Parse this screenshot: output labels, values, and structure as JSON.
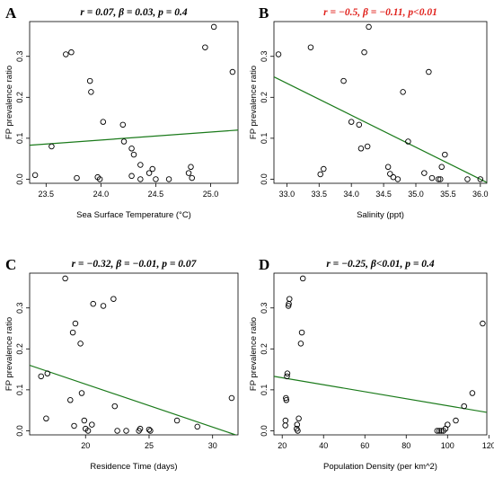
{
  "chart_data": [
    {
      "type": "scatter",
      "panel": "A",
      "title": "r = 0.07, β = 0.03, p = 0.4",
      "title_color": "#000000",
      "xlabel": "Sea Surface Temperature (°C)",
      "ylabel": "FP prevalence ratio",
      "xlim": [
        23.35,
        25.25
      ],
      "ylim": [
        -0.01,
        0.385
      ],
      "xticks": [
        "23.5",
        "24.0",
        "24.5",
        "25.0"
      ],
      "xtick_values": [
        23.5,
        24.0,
        24.5,
        25.0
      ],
      "yticks": [
        "0.0",
        "0.1",
        "0.2",
        "0.3"
      ],
      "ytick_values": [
        0.0,
        0.1,
        0.2,
        0.3
      ],
      "fit_line": {
        "x": [
          23.35,
          25.25
        ],
        "y": [
          0.083,
          0.12
        ],
        "color": "#1a7a1a"
      },
      "points": [
        {
          "x": 23.4,
          "y": 0.01
        },
        {
          "x": 23.55,
          "y": 0.08
        },
        {
          "x": 23.68,
          "y": 0.305
        },
        {
          "x": 23.73,
          "y": 0.31
        },
        {
          "x": 23.78,
          "y": 0.003
        },
        {
          "x": 23.9,
          "y": 0.24
        },
        {
          "x": 23.91,
          "y": 0.213
        },
        {
          "x": 23.97,
          "y": 0.005
        },
        {
          "x": 23.99,
          "y": 0.0
        },
        {
          "x": 24.02,
          "y": 0.14
        },
        {
          "x": 24.2,
          "y": 0.133
        },
        {
          "x": 24.21,
          "y": 0.092
        },
        {
          "x": 24.28,
          "y": 0.075
        },
        {
          "x": 24.3,
          "y": 0.06
        },
        {
          "x": 24.36,
          "y": 0.035
        },
        {
          "x": 24.28,
          "y": 0.008
        },
        {
          "x": 24.36,
          "y": 0.0
        },
        {
          "x": 24.44,
          "y": 0.015
        },
        {
          "x": 24.47,
          "y": 0.025
        },
        {
          "x": 24.5,
          "y": 0.0
        },
        {
          "x": 24.62,
          "y": 0.0
        },
        {
          "x": 24.8,
          "y": 0.015
        },
        {
          "x": 24.82,
          "y": 0.03
        },
        {
          "x": 24.83,
          "y": 0.003
        },
        {
          "x": 24.95,
          "y": 0.322
        },
        {
          "x": 25.03,
          "y": 0.372
        },
        {
          "x": 25.2,
          "y": 0.262
        }
      ]
    },
    {
      "type": "scatter",
      "panel": "B",
      "title": "r = −0.5, β = −0.11, p<0.01",
      "title_color": "#e0201b",
      "xlabel": "Salinity (ppt)",
      "ylabel": "FP prevalence ratio",
      "xlim": [
        32.8,
        36.1
      ],
      "ylim": [
        -0.01,
        0.385
      ],
      "xticks": [
        "33.0",
        "33.5",
        "34.0",
        "34.5",
        "35.0",
        "35.5",
        "36.0"
      ],
      "xtick_values": [
        33.0,
        33.5,
        34.0,
        34.5,
        35.0,
        35.5,
        36.0
      ],
      "yticks": [
        "0.0",
        "0.1",
        "0.2",
        "0.3"
      ],
      "ytick_values": [
        0.0,
        0.1,
        0.2,
        0.3
      ],
      "fit_line": {
        "x": [
          32.8,
          36.1
        ],
        "y": [
          0.25,
          -0.008
        ],
        "color": "#1a7a1a"
      },
      "points": [
        {
          "x": 32.87,
          "y": 0.305
        },
        {
          "x": 33.37,
          "y": 0.322
        },
        {
          "x": 33.52,
          "y": 0.012
        },
        {
          "x": 33.57,
          "y": 0.025
        },
        {
          "x": 33.88,
          "y": 0.24
        },
        {
          "x": 34.0,
          "y": 0.14
        },
        {
          "x": 34.12,
          "y": 0.133
        },
        {
          "x": 34.15,
          "y": 0.075
        },
        {
          "x": 34.2,
          "y": 0.31
        },
        {
          "x": 34.25,
          "y": 0.08
        },
        {
          "x": 34.27,
          "y": 0.372
        },
        {
          "x": 34.57,
          "y": 0.03
        },
        {
          "x": 34.6,
          "y": 0.013
        },
        {
          "x": 34.65,
          "y": 0.005
        },
        {
          "x": 34.72,
          "y": 0.0
        },
        {
          "x": 34.8,
          "y": 0.213
        },
        {
          "x": 34.88,
          "y": 0.092
        },
        {
          "x": 35.13,
          "y": 0.015
        },
        {
          "x": 35.2,
          "y": 0.262
        },
        {
          "x": 35.25,
          "y": 0.003
        },
        {
          "x": 35.35,
          "y": 0.0
        },
        {
          "x": 35.38,
          "y": 0.0
        },
        {
          "x": 35.4,
          "y": 0.03
        },
        {
          "x": 35.45,
          "y": 0.06
        },
        {
          "x": 35.8,
          "y": 0.0
        },
        {
          "x": 36.0,
          "y": 0.0
        }
      ]
    },
    {
      "type": "scatter",
      "panel": "C",
      "title": "r = −0.32, β = −0.01, p = 0.07",
      "title_color": "#000000",
      "xlabel": "Residence Time (days)",
      "ylabel": "FP prevalence ratio",
      "xlim": [
        15.6,
        32.0
      ],
      "ylim": [
        -0.01,
        0.385
      ],
      "xticks": [
        "20",
        "25",
        "30"
      ],
      "xtick_values": [
        20,
        25,
        30
      ],
      "yticks": [
        "0.0",
        "0.1",
        "0.2",
        "0.3"
      ],
      "ytick_values": [
        0.0,
        0.1,
        0.2,
        0.3
      ],
      "fit_line": {
        "x": [
          15.6,
          32.0
        ],
        "y": [
          0.16,
          -0.012
        ],
        "color": "#1a7a1a"
      },
      "points": [
        {
          "x": 16.5,
          "y": 0.133
        },
        {
          "x": 17.0,
          "y": 0.14
        },
        {
          "x": 16.9,
          "y": 0.03
        },
        {
          "x": 18.4,
          "y": 0.372
        },
        {
          "x": 18.8,
          "y": 0.075
        },
        {
          "x": 19.2,
          "y": 0.262
        },
        {
          "x": 19.0,
          "y": 0.24
        },
        {
          "x": 19.1,
          "y": 0.012
        },
        {
          "x": 19.6,
          "y": 0.213
        },
        {
          "x": 19.7,
          "y": 0.092
        },
        {
          "x": 19.9,
          "y": 0.025
        },
        {
          "x": 20.0,
          "y": 0.005
        },
        {
          "x": 20.2,
          "y": 0.0
        },
        {
          "x": 20.5,
          "y": 0.015
        },
        {
          "x": 20.6,
          "y": 0.31
        },
        {
          "x": 21.4,
          "y": 0.305
        },
        {
          "x": 22.2,
          "y": 0.322
        },
        {
          "x": 22.3,
          "y": 0.06
        },
        {
          "x": 22.5,
          "y": 0.0
        },
        {
          "x": 23.2,
          "y": 0.0
        },
        {
          "x": 24.2,
          "y": 0.0
        },
        {
          "x": 24.3,
          "y": 0.005
        },
        {
          "x": 25.0,
          "y": 0.003
        },
        {
          "x": 25.1,
          "y": 0.0
        },
        {
          "x": 27.2,
          "y": 0.025
        },
        {
          "x": 28.8,
          "y": 0.01
        },
        {
          "x": 31.5,
          "y": 0.08
        }
      ]
    },
    {
      "type": "scatter",
      "panel": "D",
      "title": "r = −0.25, β<0.01, p = 0.4",
      "title_color": "#000000",
      "xlabel": "Population Density (per km^2)",
      "ylabel": "FP prevalence ratio",
      "xlim": [
        16,
        119
      ],
      "ylim": [
        -0.01,
        0.385
      ],
      "xticks": [
        "20",
        "40",
        "60",
        "80",
        "100",
        "120"
      ],
      "xtick_values": [
        20,
        40,
        60,
        80,
        100,
        120
      ],
      "yticks": [
        "0.0",
        "0.1",
        "0.2",
        "0.3"
      ],
      "ytick_values": [
        0.0,
        0.1,
        0.2,
        0.3
      ],
      "fit_line": {
        "x": [
          16,
          119
        ],
        "y": [
          0.133,
          0.045
        ],
        "color": "#1a7a1a"
      },
      "points": [
        {
          "x": 21.5,
          "y": 0.013
        },
        {
          "x": 21.6,
          "y": 0.025
        },
        {
          "x": 21.8,
          "y": 0.08
        },
        {
          "x": 22.0,
          "y": 0.075
        },
        {
          "x": 22.3,
          "y": 0.133
        },
        {
          "x": 22.5,
          "y": 0.14
        },
        {
          "x": 23.0,
          "y": 0.305
        },
        {
          "x": 23.2,
          "y": 0.31
        },
        {
          "x": 23.5,
          "y": 0.322
        },
        {
          "x": 27.0,
          "y": 0.005
        },
        {
          "x": 27.2,
          "y": 0.015
        },
        {
          "x": 27.5,
          "y": 0.0
        },
        {
          "x": 28.0,
          "y": 0.03
        },
        {
          "x": 29.0,
          "y": 0.213
        },
        {
          "x": 29.5,
          "y": 0.24
        },
        {
          "x": 30.0,
          "y": 0.372
        },
        {
          "x": 95.0,
          "y": 0.0
        },
        {
          "x": 96.0,
          "y": 0.0
        },
        {
          "x": 97.0,
          "y": 0.0
        },
        {
          "x": 98.0,
          "y": 0.0
        },
        {
          "x": 99.0,
          "y": 0.005
        },
        {
          "x": 100.0,
          "y": 0.015
        },
        {
          "x": 104.0,
          "y": 0.025
        },
        {
          "x": 108.0,
          "y": 0.06
        },
        {
          "x": 112.0,
          "y": 0.092
        },
        {
          "x": 117.0,
          "y": 0.262
        }
      ]
    }
  ]
}
